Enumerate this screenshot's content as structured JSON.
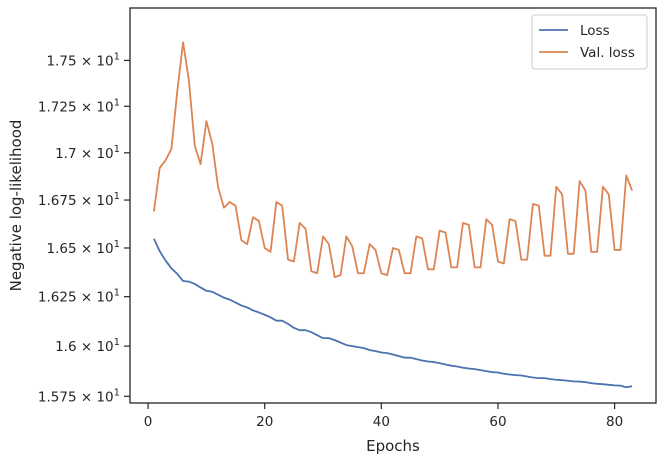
{
  "chart_data": {
    "type": "line",
    "xlabel": "Epochs",
    "ylabel": "Negative log-likelihood",
    "xlim": [
      -3.1,
      87.1
    ],
    "ylim": [
      15.717,
      17.79
    ],
    "yscale": "log",
    "grid": false,
    "legend_position": "top-right",
    "x_ticks": [
      {
        "value": 0,
        "label": "0"
      },
      {
        "value": 20,
        "label": "20"
      },
      {
        "value": 40,
        "label": "40"
      },
      {
        "value": 60,
        "label": "60"
      },
      {
        "value": 80,
        "label": "80"
      }
    ],
    "y_ticks": [
      {
        "value": 15.75,
        "mantissa": "1.575",
        "exp": "1"
      },
      {
        "value": 16.0,
        "mantissa": "1.6",
        "exp": "1"
      },
      {
        "value": 16.25,
        "mantissa": "1.625",
        "exp": "1"
      },
      {
        "value": 16.5,
        "mantissa": "1.65",
        "exp": "1"
      },
      {
        "value": 16.75,
        "mantissa": "1.675",
        "exp": "1"
      },
      {
        "value": 17.0,
        "mantissa": "1.7",
        "exp": "1"
      },
      {
        "value": 17.25,
        "mantissa": "1.725",
        "exp": "1"
      },
      {
        "value": 17.5,
        "mantissa": "1.75",
        "exp": "1"
      }
    ],
    "series": [
      {
        "name": "Loss",
        "color": "#4c72b0",
        "x": [
          1,
          2,
          3,
          4,
          5,
          6,
          7,
          8,
          9,
          10,
          11,
          12,
          13,
          14,
          15,
          16,
          17,
          18,
          19,
          20,
          21,
          22,
          23,
          24,
          25,
          26,
          27,
          28,
          29,
          30,
          31,
          32,
          33,
          34,
          35,
          36,
          37,
          38,
          39,
          40,
          41,
          42,
          43,
          44,
          45,
          46,
          47,
          48,
          49,
          50,
          51,
          52,
          53,
          54,
          55,
          56,
          57,
          58,
          59,
          60,
          61,
          62,
          63,
          64,
          65,
          66,
          67,
          68,
          69,
          70,
          71,
          72,
          73,
          74,
          75,
          76,
          77,
          78,
          79,
          80,
          81,
          82,
          83
        ],
        "values": [
          16.548,
          16.483,
          16.435,
          16.395,
          16.367,
          16.33,
          16.327,
          16.315,
          16.297,
          16.28,
          16.275,
          16.26,
          16.245,
          16.235,
          16.22,
          16.205,
          16.195,
          16.18,
          16.17,
          16.158,
          16.145,
          16.128,
          16.128,
          16.112,
          16.092,
          16.08,
          16.08,
          16.07,
          16.055,
          16.04,
          16.04,
          16.03,
          16.018,
          16.005,
          16.0,
          15.995,
          15.99,
          15.98,
          15.975,
          15.968,
          15.965,
          15.958,
          15.95,
          15.942,
          15.942,
          15.935,
          15.928,
          15.923,
          15.92,
          15.915,
          15.908,
          15.902,
          15.898,
          15.892,
          15.888,
          15.885,
          15.88,
          15.875,
          15.87,
          15.868,
          15.862,
          15.858,
          15.855,
          15.853,
          15.848,
          15.843,
          15.84,
          15.84,
          15.835,
          15.832,
          15.83,
          15.827,
          15.824,
          15.823,
          15.82,
          15.815,
          15.812,
          15.81,
          15.807,
          15.804,
          15.803,
          15.795,
          15.8
        ]
      },
      {
        "name": "Val. loss",
        "color": "#dd8452",
        "x": [
          1,
          2,
          3,
          4,
          5,
          6,
          7,
          8,
          9,
          10,
          11,
          12,
          13,
          14,
          15,
          16,
          17,
          18,
          19,
          20,
          21,
          22,
          23,
          24,
          25,
          26,
          27,
          28,
          29,
          30,
          31,
          32,
          33,
          34,
          35,
          36,
          37,
          38,
          39,
          40,
          41,
          42,
          43,
          44,
          45,
          46,
          47,
          48,
          49,
          50,
          51,
          52,
          53,
          54,
          55,
          56,
          57,
          58,
          59,
          60,
          61,
          62,
          63,
          64,
          65,
          66,
          67,
          68,
          69,
          70,
          71,
          72,
          73,
          74,
          75,
          76,
          77,
          78,
          79,
          80,
          81,
          82,
          83
        ],
        "values": [
          16.69,
          16.92,
          16.96,
          17.02,
          17.33,
          17.6,
          17.39,
          17.04,
          16.94,
          17.17,
          17.05,
          16.82,
          16.71,
          16.74,
          16.72,
          16.54,
          16.52,
          16.66,
          16.64,
          16.5,
          16.48,
          16.74,
          16.72,
          16.44,
          16.43,
          16.63,
          16.6,
          16.38,
          16.37,
          16.56,
          16.52,
          16.35,
          16.36,
          16.56,
          16.51,
          16.37,
          16.37,
          16.52,
          16.49,
          16.37,
          16.36,
          16.5,
          16.49,
          16.37,
          16.37,
          16.56,
          16.55,
          16.39,
          16.39,
          16.59,
          16.58,
          16.4,
          16.4,
          16.63,
          16.62,
          16.4,
          16.4,
          16.65,
          16.62,
          16.43,
          16.42,
          16.65,
          16.64,
          16.44,
          16.44,
          16.73,
          16.72,
          16.46,
          16.46,
          16.82,
          16.78,
          16.47,
          16.47,
          16.85,
          16.8,
          16.48,
          16.48,
          16.82,
          16.78,
          16.49,
          16.49,
          16.88,
          16.8
        ]
      }
    ]
  }
}
